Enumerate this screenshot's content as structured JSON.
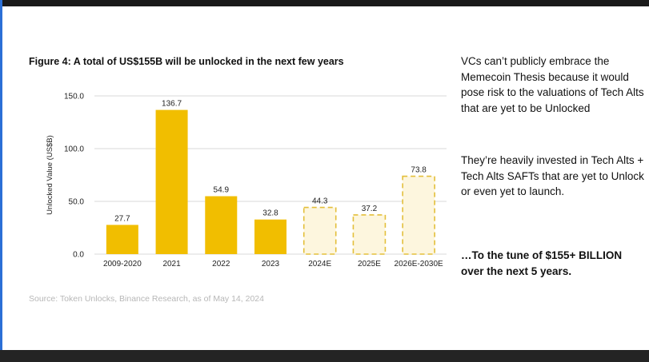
{
  "chart_data": {
    "type": "bar",
    "title": "Figure 4: A total of US$155B will be unlocked in the next few years",
    "ylabel": "Unlocked Value (US$B)",
    "xlabel": "",
    "ylim": [
      0,
      150
    ],
    "yticks": [
      "0.0",
      "50.0",
      "100.0",
      "150.0"
    ],
    "grid": true,
    "categories": [
      "2009-2020",
      "2021",
      "2022",
      "2023",
      "2024E",
      "2025E",
      "2026E-2030E"
    ],
    "values": [
      27.7,
      136.7,
      54.9,
      32.8,
      44.3,
      37.2,
      73.8
    ],
    "value_labels": [
      "27.7",
      "136.7",
      "54.9",
      "32.8",
      "44.3",
      "37.2",
      "73.8"
    ],
    "estimated": [
      false,
      false,
      false,
      false,
      true,
      true,
      true
    ],
    "colors": {
      "actual": "#f1be00",
      "estimate_fill": "#fdf6de",
      "estimate_stroke": "#e3bf3a",
      "grid": "#d9d9d9"
    }
  },
  "source": "Source: Token Unlocks, Binance Research, as of May 14, 2024",
  "commentary": {
    "p1": "VCs can’t publicly embrace the Memecoin Thesis because it would pose risk to the valuations of Tech Alts that are yet to be Unlocked",
    "p2": "They’re heavily invested in Tech Alts + Tech Alts SAFTs that are yet to Unlock or even yet to launch.",
    "p3": "…To the tune of $155+ BILLION over the next 5 years."
  }
}
